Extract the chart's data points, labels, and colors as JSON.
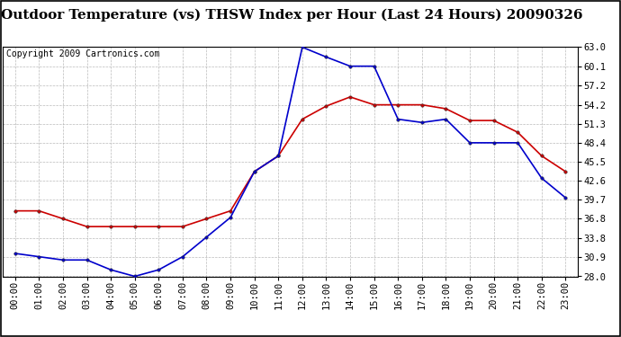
{
  "title": "Outdoor Temperature (vs) THSW Index per Hour (Last 24 Hours) 20090326",
  "copyright": "Copyright 2009 Cartronics.com",
  "hours": [
    "00:00",
    "01:00",
    "02:00",
    "03:00",
    "04:00",
    "05:00",
    "06:00",
    "07:00",
    "08:00",
    "09:00",
    "10:00",
    "11:00",
    "12:00",
    "13:00",
    "14:00",
    "15:00",
    "16:00",
    "17:00",
    "18:00",
    "19:00",
    "20:00",
    "21:00",
    "22:00",
    "23:00"
  ],
  "temp_red": [
    38.0,
    38.0,
    36.8,
    35.6,
    35.6,
    35.6,
    35.6,
    35.6,
    36.8,
    38.0,
    44.0,
    46.4,
    52.0,
    54.0,
    55.4,
    54.2,
    54.2,
    54.2,
    53.6,
    51.8,
    51.8,
    50.0,
    46.4,
    44.0
  ],
  "thsw_blue": [
    31.5,
    31.0,
    30.5,
    30.5,
    29.0,
    28.0,
    29.0,
    31.0,
    34.0,
    37.0,
    44.0,
    46.4,
    63.0,
    61.5,
    60.1,
    60.1,
    52.0,
    51.5,
    52.0,
    48.4,
    48.4,
    48.4,
    43.0,
    40.0
  ],
  "ylim_min": 28.0,
  "ylim_max": 63.0,
  "yticks": [
    28.0,
    30.9,
    33.8,
    36.8,
    39.7,
    42.6,
    45.5,
    48.4,
    51.3,
    54.2,
    57.2,
    60.1,
    63.0
  ],
  "bg_color": "#ffffff",
  "plot_bg_color": "#ffffff",
  "grid_color": "#aaaaaa",
  "red_color": "#cc0000",
  "blue_color": "#0000cc",
  "title_fontsize": 11,
  "copyright_fontsize": 7,
  "tick_fontsize": 7.5,
  "border_color": "#000000"
}
